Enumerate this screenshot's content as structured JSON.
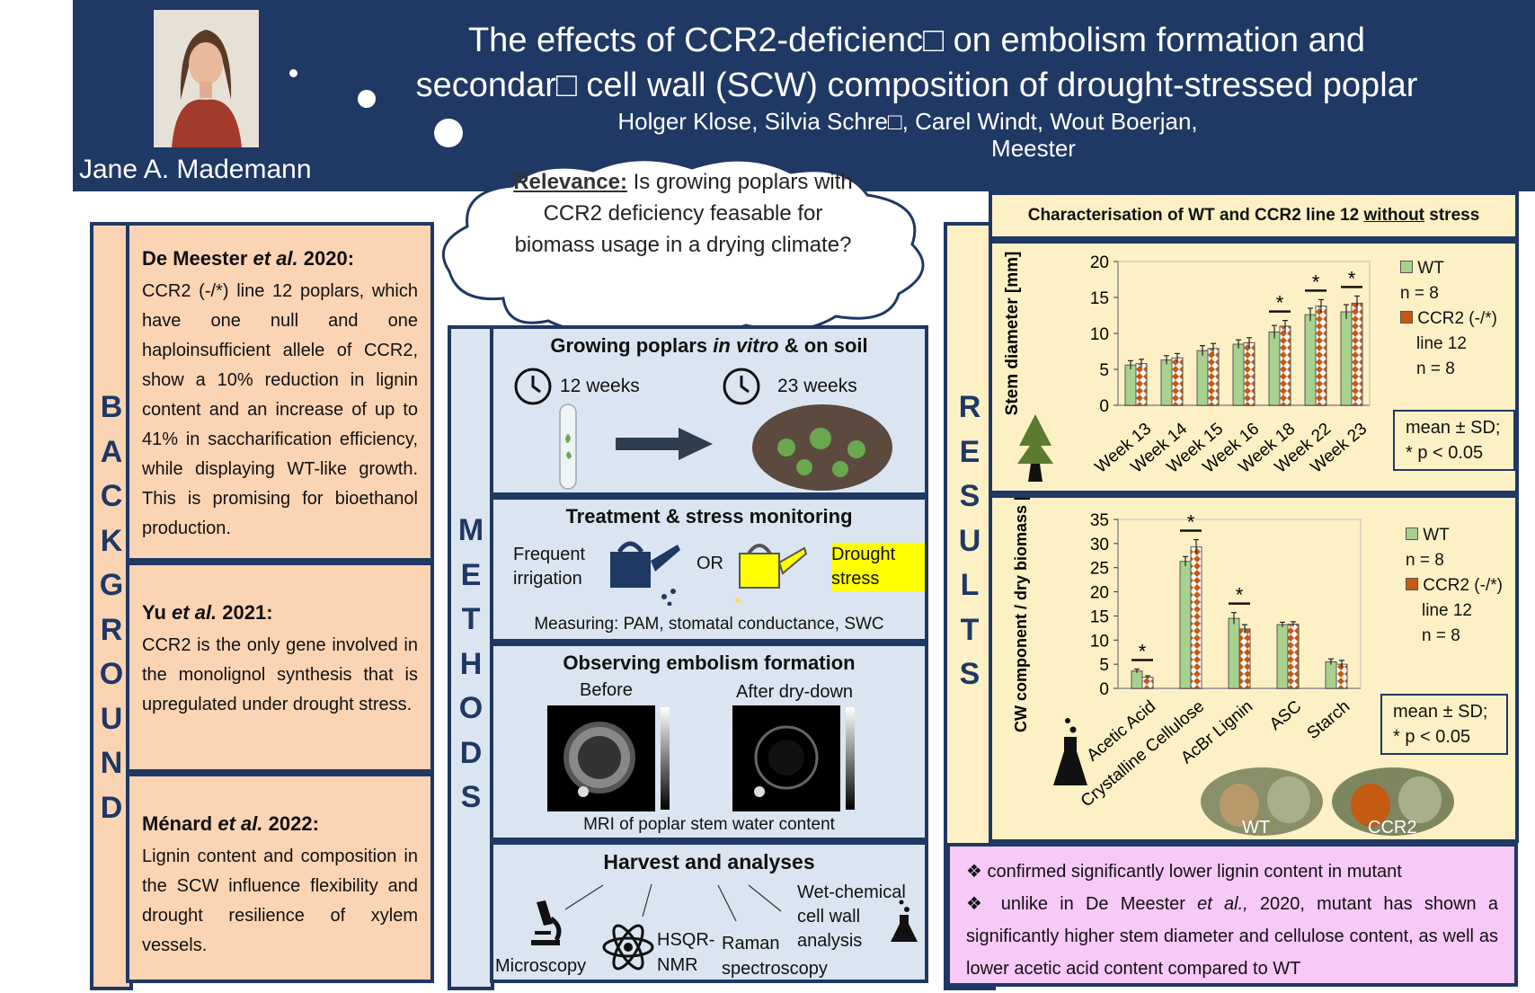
{
  "header": {
    "title_line1": "The effects of CCR2-deficienc□ on embolism formation and",
    "title_line2": "secondar□ cell wall (SCW) composition of drought-stressed poplar",
    "authors_line1": "Holger Klose, Silvia Schre□, Carel Windt, Wout Boerjan,",
    "authors_line2": "Meester",
    "presenter": "Jane A. Mademann"
  },
  "cloud": {
    "relevance_label": "Relevance:",
    "relevance_text": "Is growing poplars with CCR2 deficiency feasable for biomass usage in a drying climate?"
  },
  "background": {
    "vertical_label": [
      "B",
      "A",
      "C",
      "K",
      "G",
      "R",
      "O",
      "U",
      "N",
      "D"
    ],
    "refs": [
      {
        "author": "De Meester",
        "etal": "et al.",
        "year": "2020:",
        "text": "CCR2 (-/*) line 12 poplars, which have one null and one haploinsufficient allele of CCR2, show a 10% reduction in lignin content and an increase of up to 41% in saccharification efficiency, while displaying WT-like growth. This is promising for bioethanol production."
      },
      {
        "author": "Yu",
        "etal": "et al.",
        "year": "2021:",
        "text": "CCR2 is the only gene involved in the monolignol synthesis that is upregulated under drought stress."
      },
      {
        "author": "Ménard",
        "etal": "et al.",
        "year": "2022:",
        "text": "Lignin content and composition in the SCW influence flexibility and drought resilience of xylem vessels."
      }
    ]
  },
  "methods": {
    "vertical_label": [
      "M",
      "E",
      "T",
      "H",
      "O",
      "D",
      "S"
    ],
    "grow": {
      "title_a": "Growing poplars ",
      "title_b": "in vitro",
      "title_c": " & on soil",
      "t1": "12 weeks",
      "t2": "23 weeks"
    },
    "treat": {
      "title": "Treatment & stress monitoring",
      "irrigation": "Frequent irrigation",
      "or": "OR",
      "drought": "Drought stress",
      "measuring": "Measuring: PAM, stomatal conductance, SWC"
    },
    "embolism": {
      "title": "Observing embolism formation",
      "before": "Before",
      "after": "After dry-down",
      "caption": "MRI of poplar stem water content"
    },
    "harvest": {
      "title": "Harvest and analyses",
      "microscopy": "Microscopy",
      "nmr": "HSQR-NMR",
      "raman": "Raman spectroscopy",
      "wetchem": "Wet-chemical cell wall analysis"
    }
  },
  "results": {
    "vertical_label": [
      "R",
      "E",
      "S",
      "U",
      "L",
      "T",
      "S"
    ],
    "header": "Characterisation of WT and CCR2 line 12 ",
    "header_underlined": "without",
    "header_end": " stress",
    "legend": {
      "wt": "WT",
      "n_wt": "n = 8",
      "ccr2": "CCR2 (-/*)",
      "line": "line 12",
      "n_ccr2": "n = 8"
    },
    "note": {
      "l1": "mean ± SD;",
      "l2": "* p < 0.05"
    },
    "photo_labels": {
      "wt": "WT",
      "ccr2": "CCR2"
    },
    "summary": [
      {
        "text": "confirmed significantly lower lignin content in mutant"
      },
      {
        "text_a": "unlike in De Meester ",
        "text_b": "et al.,",
        "text_c": " 2020, mutant has shown a significantly higher stem diameter and cellulose content, as well as lower acetic acid content compared to WT"
      }
    ],
    "colors": {
      "wt": "#a9d18e",
      "ccr2": "#c55a11",
      "panel": "#fdf0c5",
      "navy": "#1f3864"
    }
  },
  "chart_data": [
    {
      "type": "bar",
      "categories": [
        "Week 13",
        "Week 14",
        "Week 15",
        "Week 16",
        "Week 18",
        "Week 22",
        "Week 23"
      ],
      "series": [
        {
          "name": "WT",
          "values": [
            5.6,
            6.3,
            7.6,
            8.5,
            10.2,
            12.6,
            13.0
          ],
          "errors": [
            0.6,
            0.6,
            0.7,
            0.6,
            0.9,
            0.9,
            1.0
          ]
        },
        {
          "name": "CCR2 (-/*) line 12",
          "values": [
            5.8,
            6.6,
            7.9,
            8.7,
            11.0,
            13.8,
            14.2
          ],
          "errors": [
            0.6,
            0.6,
            0.7,
            0.7,
            0.8,
            0.9,
            1.0
          ]
        }
      ],
      "significant": [
        false,
        false,
        false,
        false,
        true,
        true,
        true
      ],
      "ylabel": "Stem diameter [mm]",
      "ylim": [
        0,
        20
      ],
      "yticks": [
        0,
        5,
        10,
        15,
        20
      ]
    },
    {
      "type": "bar",
      "categories": [
        "Acetic Acid",
        "Crystalline Cellulose",
        "AcBr Lignin",
        "ASC",
        "Starch"
      ],
      "series": [
        {
          "name": "WT",
          "values": [
            3.6,
            26.3,
            14.5,
            13.2,
            5.5
          ],
          "errors": [
            0.4,
            1.0,
            1.2,
            0.5,
            0.6
          ]
        },
        {
          "name": "CCR2 (-/*) line 12",
          "values": [
            2.3,
            29.3,
            12.3,
            13.3,
            5.0
          ],
          "errors": [
            0.3,
            1.5,
            0.9,
            0.5,
            0.8
          ]
        }
      ],
      "significant": [
        true,
        true,
        true,
        false,
        false
      ],
      "ylabel": "CW component / dry biomass [%]",
      "ylim": [
        0,
        35
      ],
      "yticks": [
        0,
        5,
        10,
        15,
        20,
        25,
        30,
        35
      ]
    }
  ]
}
